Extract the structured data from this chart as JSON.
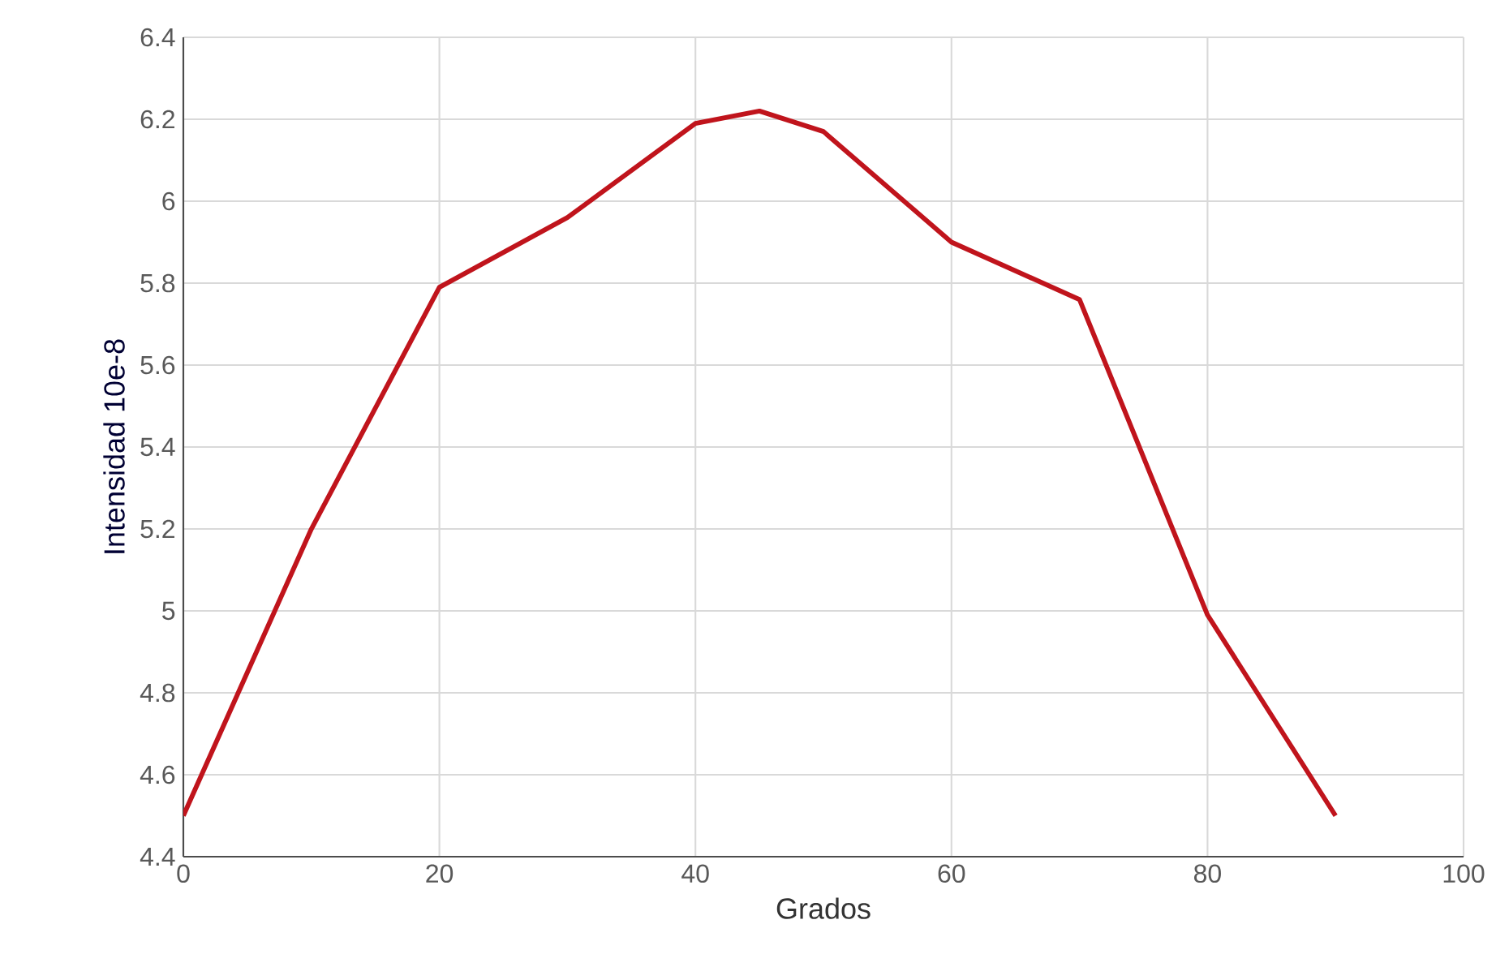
{
  "chart_data": {
    "type": "line",
    "xlabel": "Grados",
    "ylabel": "Intensidad 10e-8",
    "x": [
      0,
      10,
      20,
      30,
      40,
      45,
      50,
      60,
      70,
      80,
      90
    ],
    "series": [
      {
        "color": "#c0141c",
        "values": [
          4.5,
          5.2,
          5.79,
          5.96,
          6.19,
          6.22,
          6.17,
          5.9,
          5.76,
          4.99,
          4.5
        ]
      }
    ],
    "xlim": [
      0,
      100
    ],
    "xticks": [
      0,
      20,
      40,
      60,
      80,
      100
    ],
    "ylim": [
      4.4,
      6.4
    ],
    "yticks": [
      4.4,
      4.6,
      4.8,
      5,
      5.2,
      5.4,
      5.6,
      5.8,
      6,
      6.2,
      6.4
    ],
    "grid": true,
    "marker": "none",
    "line_style": "solid"
  }
}
